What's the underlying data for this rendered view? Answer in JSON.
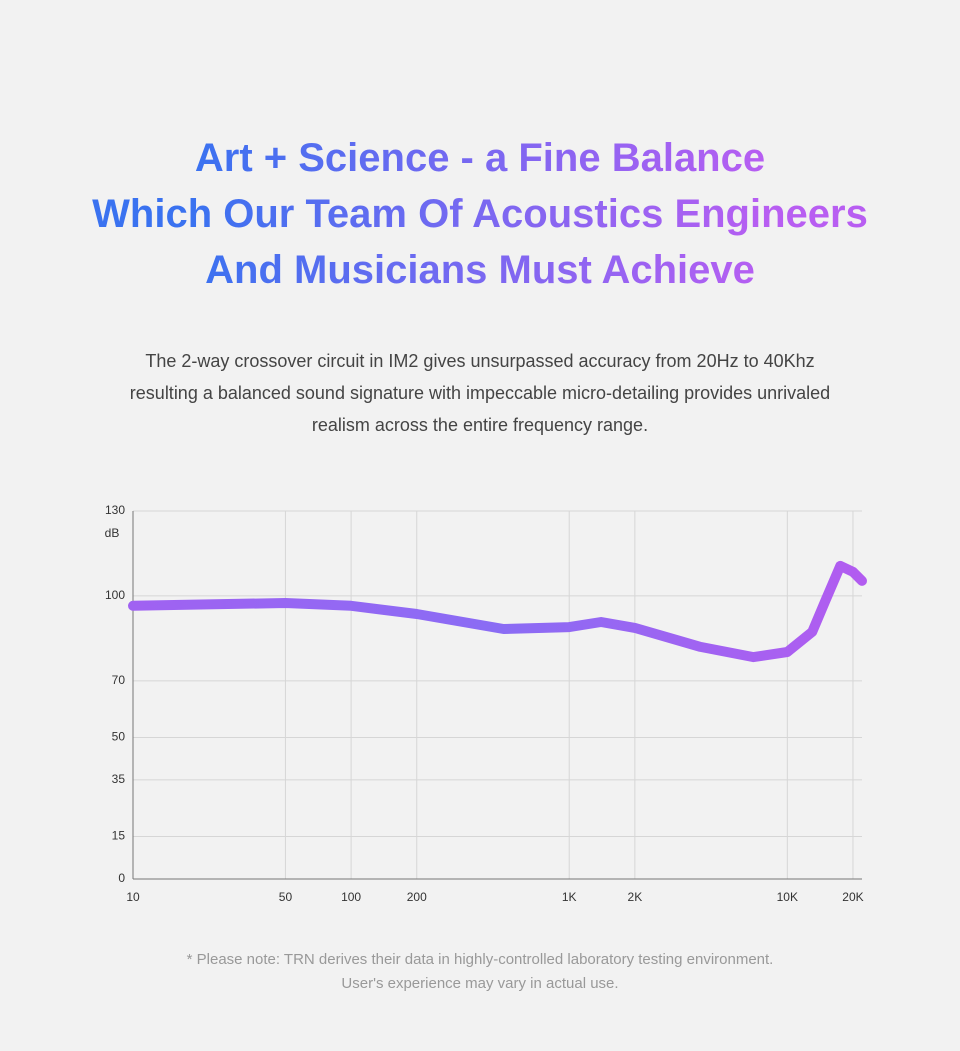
{
  "headline": [
    "Art + Science - a Fine Balance",
    "Which Our Team Of Acoustics Engineers",
    "And Musicians Must Achieve"
  ],
  "intro": [
    "The 2-way crossover circuit in IM2 gives unsurpassed accuracy from 20Hz to 40Khz",
    "resulting a balanced sound signature with impeccable micro-detailing provides unrivaled",
    "realism across the entire frequency range."
  ],
  "chart_data": {
    "type": "line",
    "y_label": "dB",
    "log_x": true,
    "grid": true,
    "color": "#9b5cf0",
    "x": [
      10,
      50,
      100,
      200,
      500,
      1000,
      1400,
      2000,
      4000,
      7000,
      10000,
      13000,
      15000,
      17500,
      20000,
      22000
    ],
    "values": [
      96.5,
      97.5,
      96.5,
      93.6,
      88.3,
      89,
      90.8,
      88.7,
      82,
      78.4,
      80.2,
      87.3,
      98.6,
      110.6,
      108.5,
      105.3
    ],
    "xlim": [
      10,
      22000
    ],
    "ylim": [
      0,
      130
    ],
    "xticks": [
      10,
      50,
      100,
      200,
      {
        "value": 1000,
        "label": "1K"
      },
      {
        "value": 2000,
        "label": "2K"
      },
      {
        "value": 10000,
        "label": "10K"
      },
      {
        "value": 20000,
        "label": "20K"
      }
    ],
    "yticks": [
      0,
      15,
      35,
      50,
      70,
      100,
      130
    ]
  },
  "note": [
    "* Please note: TRN derives their data in highly-controlled laboratory testing environment.",
    "User's experience may vary in actual use."
  ]
}
